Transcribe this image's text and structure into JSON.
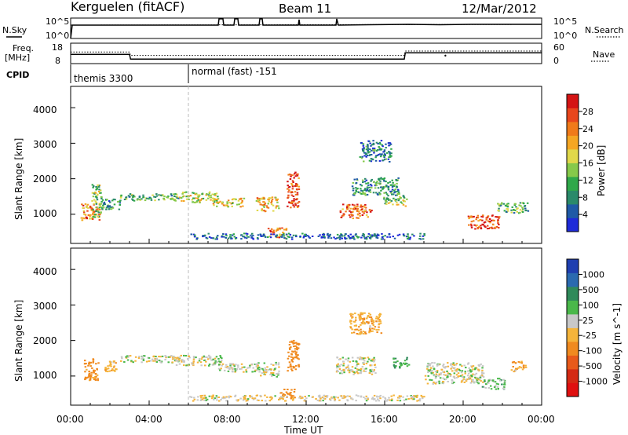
{
  "header": {
    "station": "Kerguelen (fitACF)",
    "beam": "Beam 11",
    "date": "12/Mar/2012"
  },
  "info_panels": {
    "nsky_label": "N.Sky",
    "nsearch_label": "N.Search",
    "noise_ticks_left": [
      "10^5",
      "10^0"
    ],
    "noise_ticks_right": [
      "10^5",
      "10^0"
    ],
    "freq_label_1": "Freq.",
    "freq_label_2": "[MHz]",
    "freq_ticks": [
      "18",
      "8"
    ],
    "nave_label": "Nave",
    "nave_ticks": [
      "60",
      "0"
    ],
    "cpid_label": "CPID",
    "cpid_segments": [
      "themis 3300",
      "normal (fast) -151"
    ]
  },
  "axes": {
    "x_label": "Time UT",
    "x_ticks": [
      "00:00",
      "04:00",
      "08:00",
      "12:00",
      "16:00",
      "20:00",
      "00:00"
    ],
    "y_label": "Slant Range [km]",
    "y_ticks": [
      "1000",
      "2000",
      "3000",
      "4000"
    ]
  },
  "power_colorbar": {
    "label": "Power [dB]",
    "ticks": [
      "4",
      "8",
      "12",
      "16",
      "20",
      "24",
      "28"
    ],
    "colors": [
      "#1f2bd8",
      "#1f5aa6",
      "#2a8a6a",
      "#2fa84a",
      "#86c94a",
      "#e0d84a",
      "#f5a623",
      "#f07a1a",
      "#e8461c",
      "#d41414"
    ]
  },
  "velocity_colorbar": {
    "label": "Velocity [m s^-1]",
    "ticks": [
      "1000",
      "500",
      "100",
      "25",
      "-25",
      "-100",
      "-500",
      "-1000"
    ],
    "colors": [
      "#1f3fb0",
      "#2a6ab0",
      "#2f8a5a",
      "#4ab84a",
      "#c8c8c8",
      "#f5b43a",
      "#f08a1f",
      "#e85a1a",
      "#d42a14",
      "#e01010"
    ]
  },
  "chart_data": {
    "type": "heatmap",
    "x_range_hours": [
      0,
      24
    ],
    "y_range_km": [
      180,
      4600
    ],
    "grid": false,
    "series": [
      {
        "name": "Power",
        "blobs": [
          {
            "t": 1.0,
            "r": 1100,
            "dt": 0.5,
            "dr": 250,
            "v": 22
          },
          {
            "t": 1.3,
            "r": 1400,
            "dt": 0.25,
            "dr": 500,
            "v": 14
          },
          {
            "t": 2.0,
            "r": 1300,
            "dt": 0.5,
            "dr": 150,
            "v": 10
          },
          {
            "t": 4.0,
            "r": 1500,
            "dt": 1.5,
            "dr": 100,
            "v": 12
          },
          {
            "t": 6.5,
            "r": 1500,
            "dt": 1.0,
            "dr": 150,
            "v": 16
          },
          {
            "t": 8.0,
            "r": 1350,
            "dt": 0.8,
            "dr": 120,
            "v": 18
          },
          {
            "t": 10.0,
            "r": 1300,
            "dt": 0.6,
            "dr": 200,
            "v": 20
          },
          {
            "t": 11.3,
            "r": 1700,
            "dt": 0.3,
            "dr": 500,
            "v": 26
          },
          {
            "t": 10.5,
            "r": 500,
            "dt": 0.5,
            "dr": 150,
            "v": 22
          },
          {
            "t": 14.5,
            "r": 1100,
            "dt": 0.8,
            "dr": 200,
            "v": 24
          },
          {
            "t": 15.5,
            "r": 1800,
            "dt": 1.2,
            "dr": 250,
            "v": 10
          },
          {
            "t": 15.5,
            "r": 2800,
            "dt": 0.8,
            "dr": 300,
            "v": 8
          },
          {
            "t": 16.5,
            "r": 1400,
            "dt": 0.6,
            "dr": 150,
            "v": 14
          },
          {
            "t": 21.0,
            "r": 800,
            "dt": 0.8,
            "dr": 200,
            "v": 26
          },
          {
            "t": 22.5,
            "r": 1200,
            "dt": 0.8,
            "dr": 150,
            "v": 12
          },
          {
            "t": 12.0,
            "r": 400,
            "dt": 6.0,
            "dr": 80,
            "v": 6
          }
        ]
      },
      {
        "name": "Velocity",
        "blobs": [
          {
            "t": 1.0,
            "r": 1200,
            "dt": 0.4,
            "dr": 300,
            "v": -150
          },
          {
            "t": 2.0,
            "r": 1300,
            "dt": 0.3,
            "dr": 150,
            "v": -80
          },
          {
            "t": 4.0,
            "r": 1500,
            "dt": 1.5,
            "dr": 100,
            "v": 0
          },
          {
            "t": 6.5,
            "r": 1450,
            "dt": 1.2,
            "dr": 150,
            "v": 0
          },
          {
            "t": 8.5,
            "r": 1250,
            "dt": 1.0,
            "dr": 120,
            "v": 0
          },
          {
            "t": 10.0,
            "r": 1200,
            "dt": 0.6,
            "dr": 200,
            "v": 0
          },
          {
            "t": 11.3,
            "r": 1600,
            "dt": 0.3,
            "dr": 450,
            "v": -300
          },
          {
            "t": 11.0,
            "r": 500,
            "dt": 0.4,
            "dr": 150,
            "v": -400
          },
          {
            "t": 14.5,
            "r": 1300,
            "dt": 1.0,
            "dr": 250,
            "v": 0
          },
          {
            "t": 15.0,
            "r": 2500,
            "dt": 0.8,
            "dr": 300,
            "v": -80
          },
          {
            "t": 16.8,
            "r": 1400,
            "dt": 0.4,
            "dr": 150,
            "v": 100
          },
          {
            "t": 19.5,
            "r": 1100,
            "dt": 1.5,
            "dr": 300,
            "v": 0
          },
          {
            "t": 21.5,
            "r": 800,
            "dt": 0.6,
            "dr": 150,
            "v": 50
          },
          {
            "t": 22.8,
            "r": 1300,
            "dt": 0.4,
            "dr": 150,
            "v": -80
          },
          {
            "t": 12.0,
            "r": 400,
            "dt": 6.0,
            "dr": 80,
            "v": -30
          }
        ]
      }
    ],
    "cpid_switch_hour": 6.0,
    "frequency_mhz": [
      {
        "t": 0,
        "v": 12.5
      },
      {
        "t": 3,
        "v": 12.5
      },
      {
        "t": 3.05,
        "v": 10.2
      },
      {
        "t": 17,
        "v": 10.2
      },
      {
        "t": 17.05,
        "v": 13.3
      },
      {
        "t": 24,
        "v": 13.3
      }
    ],
    "nave": [
      {
        "t": 0,
        "v": 34
      },
      {
        "t": 3,
        "v": 34
      },
      {
        "t": 3.05,
        "v": 24
      },
      {
        "t": 17,
        "v": 24
      },
      {
        "t": 17.05,
        "v": 37
      },
      {
        "t": 24,
        "v": 37
      }
    ]
  }
}
